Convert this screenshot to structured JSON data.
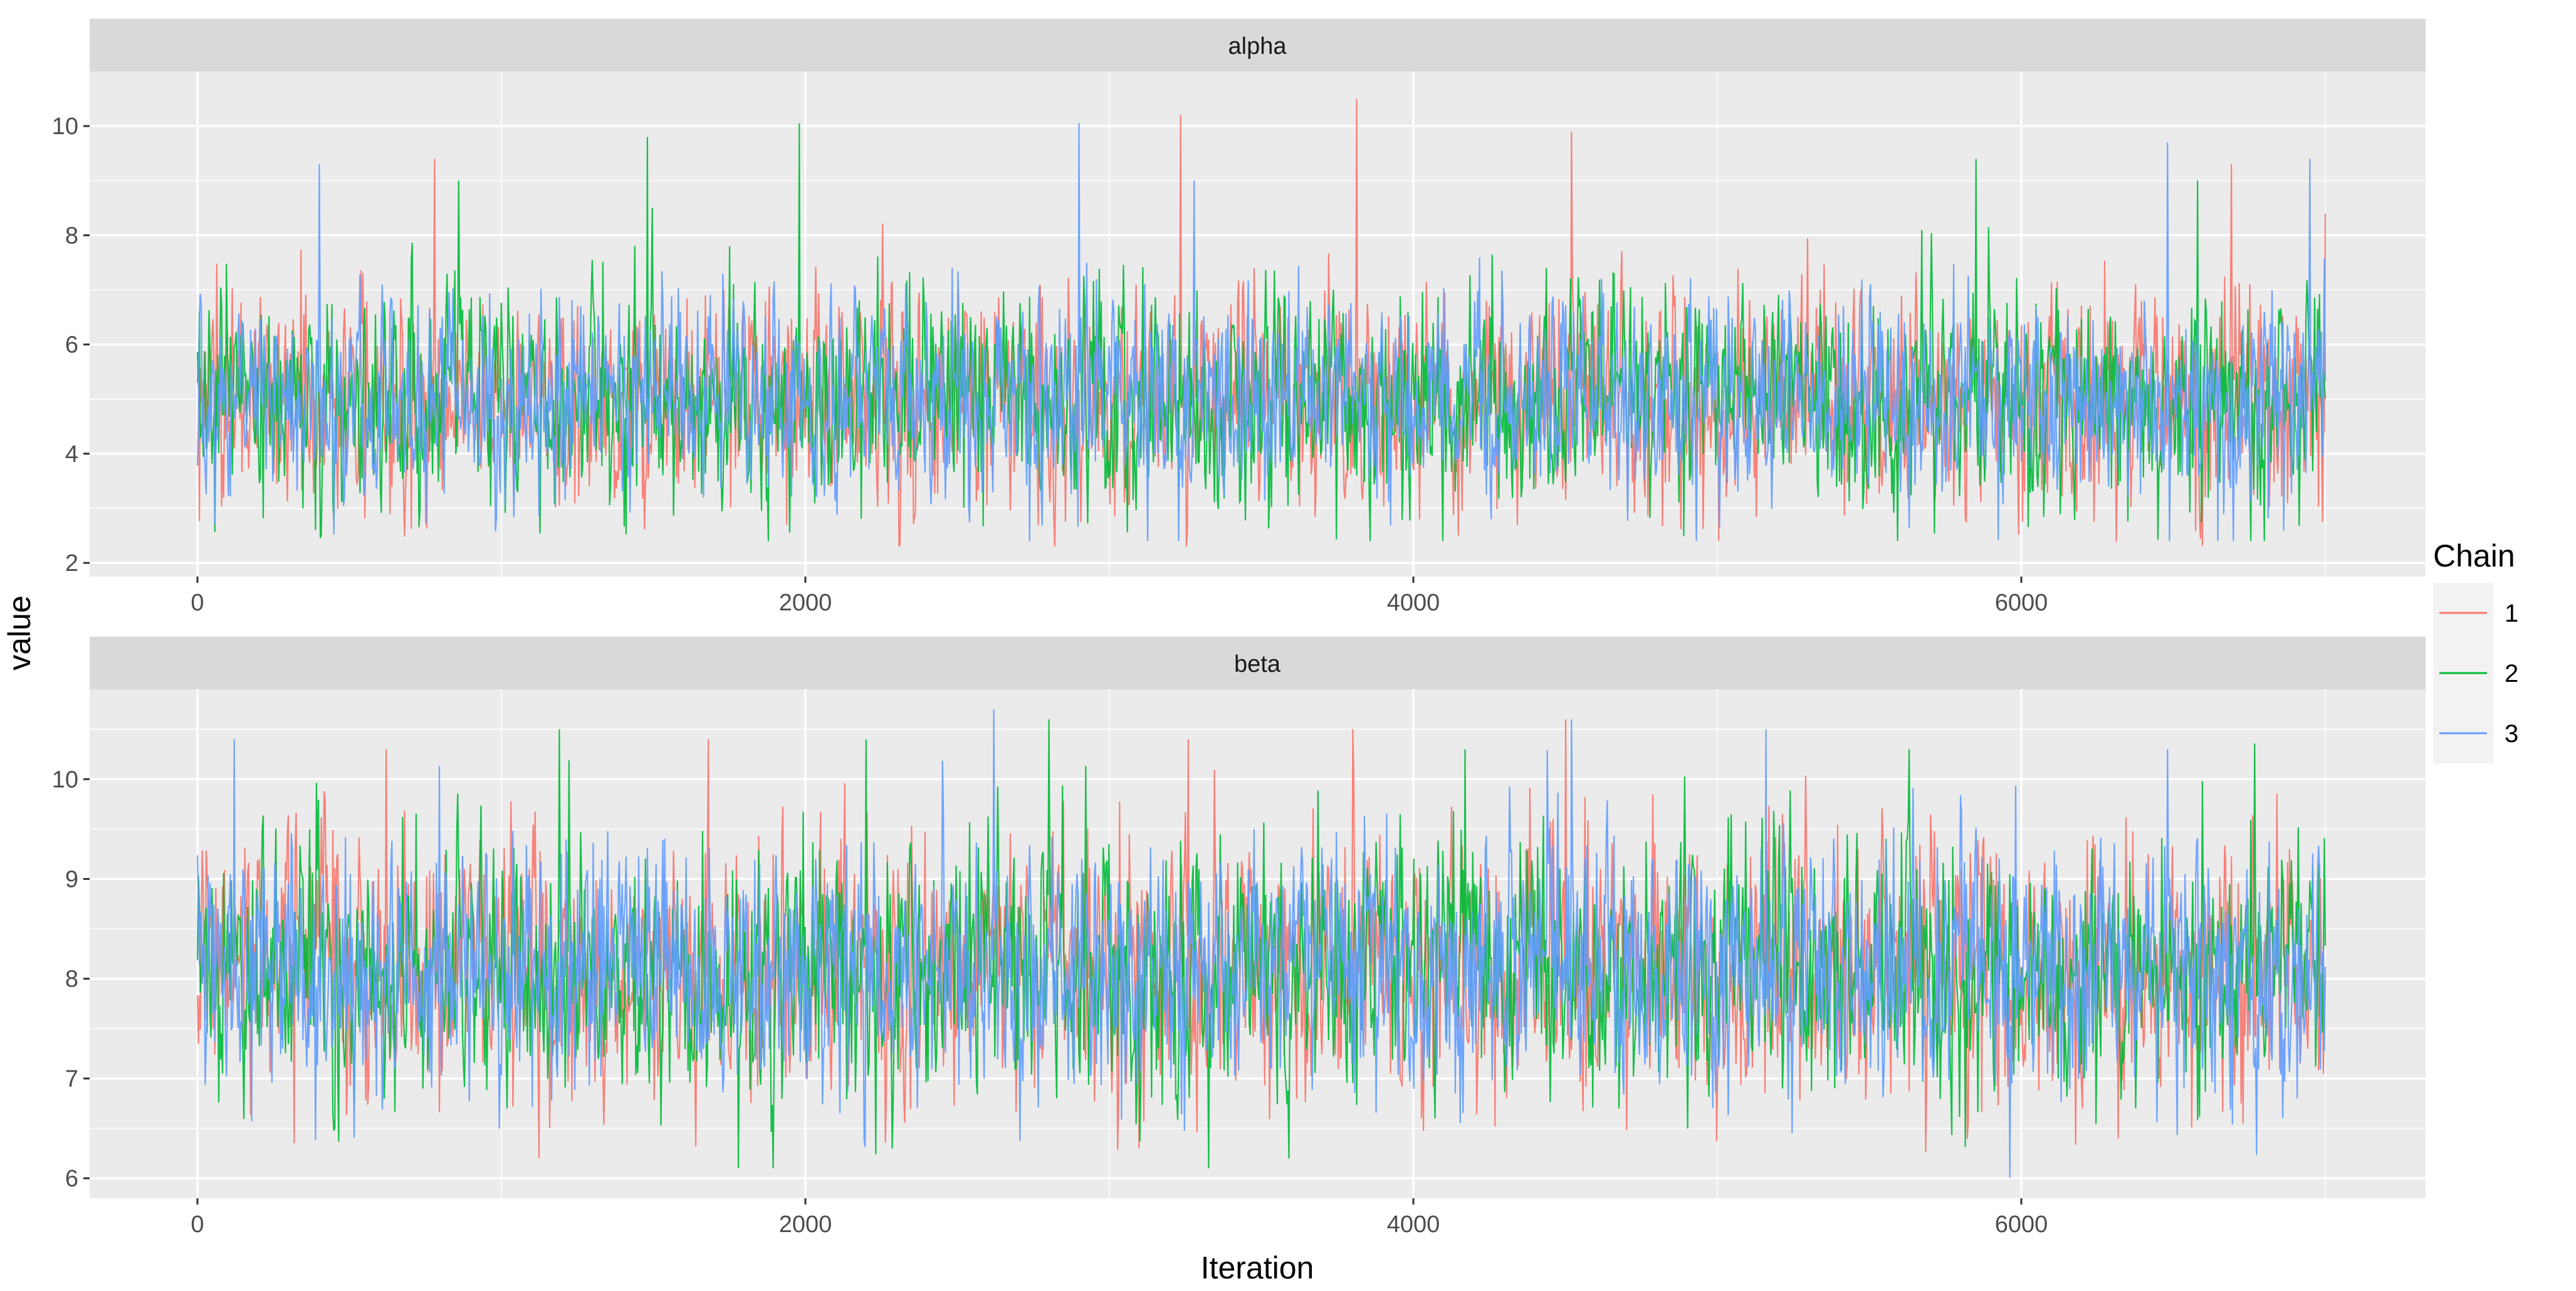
{
  "chart_data": {
    "type": "line",
    "xlabel": "Iteration",
    "ylabel": "value",
    "x_range": [
      0,
      7000
    ],
    "x_ticks": [
      0,
      2000,
      4000,
      6000
    ],
    "grid": true,
    "legend": {
      "title": "Chain",
      "placement": "right",
      "entries": [
        {
          "label": "1",
          "color": "#F8766D"
        },
        {
          "label": "2",
          "color": "#00BA38"
        },
        {
          "label": "3",
          "color": "#619CFF"
        }
      ]
    },
    "panels": [
      {
        "strip": "alpha",
        "ylim": [
          1.75,
          11.0
        ],
        "y_ticks": [
          2,
          4,
          6,
          8,
          10
        ],
        "series": [
          {
            "name": "1",
            "center": 5.0,
            "sd": 0.95,
            "min": 2.3,
            "max": 10.5,
            "peaks": [
              [
                3235,
                10.2
              ],
              [
                3815,
                10.5
              ],
              [
                4520,
                9.9
              ],
              [
                780,
                9.4
              ],
              [
                6690,
                9.3
              ]
            ]
          },
          {
            "name": "2",
            "center": 5.0,
            "sd": 0.95,
            "min": 2.4,
            "max": 10.05,
            "peaks": [
              [
                1980,
                10.05
              ],
              [
                1480,
                9.8
              ],
              [
                5850,
                9.4
              ],
              [
                860,
                9.0
              ],
              [
                6580,
                9.0
              ]
            ]
          },
          {
            "name": "3",
            "center": 5.0,
            "sd": 0.9,
            "min": 2.4,
            "max": 10.05,
            "peaks": [
              [
                2900,
                10.05
              ],
              [
                6480,
                9.7
              ],
              [
                6950,
                9.4
              ],
              [
                400,
                9.3
              ],
              [
                3280,
                9.0
              ]
            ]
          }
        ]
      },
      {
        "strip": "beta",
        "ylim": [
          5.8,
          10.9
        ],
        "y_ticks": [
          6,
          7,
          8,
          9,
          10
        ],
        "series": [
          {
            "name": "1",
            "center": 8.1,
            "sd": 0.62,
            "min": 6.2,
            "max": 10.6,
            "peaks": [
              [
                4500,
                10.6
              ],
              [
                3800,
                10.5
              ],
              [
                1680,
                10.4
              ],
              [
                3260,
                10.4
              ],
              [
                620,
                10.3
              ]
            ]
          },
          {
            "name": "2",
            "center": 8.1,
            "sd": 0.62,
            "min": 6.1,
            "max": 10.6,
            "peaks": [
              [
                2800,
                10.6
              ],
              [
                1190,
                10.5
              ],
              [
                2200,
                10.4
              ],
              [
                4170,
                10.3
              ],
              [
                5630,
                10.3
              ]
            ]
          },
          {
            "name": "3",
            "center": 8.1,
            "sd": 0.6,
            "min": 6.0,
            "max": 10.7,
            "peaks": [
              [
                2620,
                10.7
              ],
              [
                4520,
                10.6
              ],
              [
                5160,
                10.5
              ],
              [
                120,
                10.4
              ],
              [
                6480,
                10.3
              ]
            ]
          }
        ]
      }
    ]
  }
}
